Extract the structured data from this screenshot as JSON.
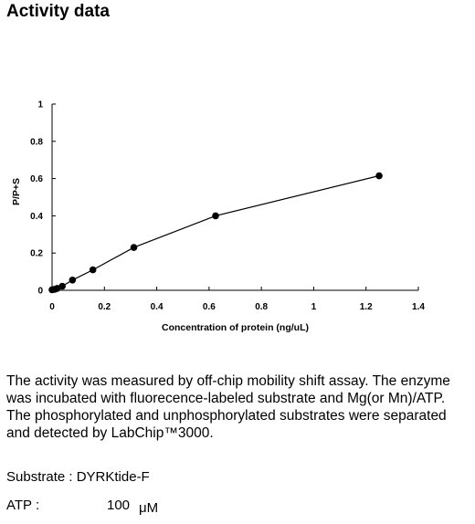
{
  "page": {
    "heading": "Activity data",
    "description": "The activity was measured by off-chip mobility shift assay. The enzyme was incubated with fluorecence-labeled  substrate and Mg(or Mn)/ATP. The phosphorylated and unphosphorylated substrates were separated and detected by LabChip™3000.",
    "substrate_line": "Substrate : DYRKtide-F",
    "atp_label": "ATP :",
    "atp_value": "100",
    "atp_unit": "μM"
  },
  "chart_data": {
    "type": "line",
    "title": "",
    "xlabel": "Concentration of protein (ng/uL)",
    "ylabel": "P/P+S",
    "xlim": [
      0,
      1.4
    ],
    "ylim": [
      0,
      1
    ],
    "xticks": [
      "0",
      "0.2",
      "0.4",
      "0.6",
      "0.8",
      "1",
      "1.2",
      "1.4"
    ],
    "yticks": [
      "0",
      "0.2",
      "0.4",
      "0.6",
      "0.8",
      "1"
    ],
    "grid": false,
    "legend": "none",
    "marker": "filled-circle",
    "color": "#000000",
    "series": [
      {
        "x": [
          0,
          0.0098,
          0.0195,
          0.039,
          0.078,
          0.156,
          0.3125,
          0.625,
          1.25
        ],
        "y": [
          0.003,
          0.005,
          0.01,
          0.022,
          0.055,
          0.11,
          0.23,
          0.4,
          0.615
        ]
      }
    ]
  }
}
